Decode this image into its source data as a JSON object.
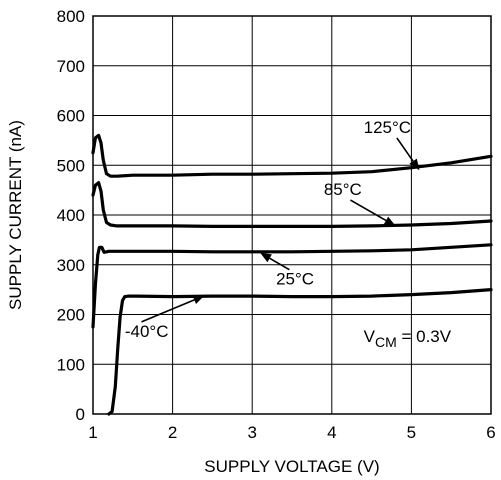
{
  "chart_data": {
    "type": "line",
    "xlabel": "SUPPLY VOLTAGE (V)",
    "ylabel": "SUPPLY CURRENT (nA)",
    "xlim": [
      1,
      6
    ],
    "ylim": [
      0,
      800
    ],
    "x_ticks": [
      "1",
      "2",
      "3",
      "4",
      "5",
      "6"
    ],
    "y_ticks": [
      "0",
      "100",
      "200",
      "300",
      "400",
      "500",
      "600",
      "700",
      "800"
    ],
    "grid": true,
    "series": [
      {
        "name": "125°C",
        "x": [
          1.0,
          1.03,
          1.07,
          1.1,
          1.13,
          1.17,
          1.22,
          1.3,
          1.5,
          2.0,
          2.5,
          3.0,
          3.5,
          4.0,
          4.5,
          5.0,
          5.5,
          6.0
        ],
        "y": [
          525,
          555,
          560,
          545,
          510,
          483,
          478,
          478,
          480,
          480,
          482,
          482,
          483,
          484,
          487,
          495,
          505,
          518
        ]
      },
      {
        "name": "85°C",
        "x": [
          1.0,
          1.03,
          1.07,
          1.1,
          1.13,
          1.17,
          1.22,
          1.3,
          1.5,
          2.0,
          2.5,
          3.0,
          3.5,
          4.0,
          4.5,
          5.0,
          5.5,
          6.0
        ],
        "y": [
          440,
          460,
          465,
          448,
          410,
          385,
          380,
          378,
          378,
          378,
          377,
          377,
          377,
          377,
          378,
          380,
          383,
          388
        ]
      },
      {
        "name": "25°C",
        "x": [
          1.0,
          1.03,
          1.06,
          1.08,
          1.11,
          1.14,
          1.2,
          1.3,
          1.5,
          2.0,
          2.5,
          3.0,
          3.5,
          4.0,
          4.5,
          5.0,
          5.5,
          6.0
        ],
        "y": [
          175,
          260,
          320,
          335,
          335,
          325,
          327,
          327,
          327,
          327,
          326,
          326,
          326,
          327,
          328,
          330,
          335,
          340
        ]
      },
      {
        "name": "-40°C",
        "x": [
          1.2,
          1.24,
          1.28,
          1.31,
          1.34,
          1.37,
          1.4,
          1.45,
          1.55,
          2.0,
          2.5,
          3.0,
          3.5,
          4.0,
          4.5,
          5.0,
          5.5,
          6.0
        ],
        "y": [
          0,
          5,
          55,
          130,
          195,
          228,
          236,
          237,
          237,
          236,
          237,
          237,
          236,
          236,
          237,
          240,
          244,
          250
        ]
      }
    ],
    "labels": [
      {
        "text": "125°C",
        "x": 5.1,
        "y": 490,
        "tx": 4.4,
        "ty": 565
      },
      {
        "text": "85°C",
        "x": 4.8,
        "y": 378,
        "tx": 3.9,
        "ty": 440
      },
      {
        "text": "25°C",
        "x": 3.1,
        "y": 324,
        "tx": 3.3,
        "ty": 260
      },
      {
        "text": "-40°C",
        "x": 2.4,
        "y": 238,
        "tx": 1.4,
        "ty": 155
      }
    ],
    "annotation": {
      "main": "V",
      "subscript": "CM",
      "rest": " = 0.3V",
      "x": 4.4,
      "y": 145
    }
  }
}
